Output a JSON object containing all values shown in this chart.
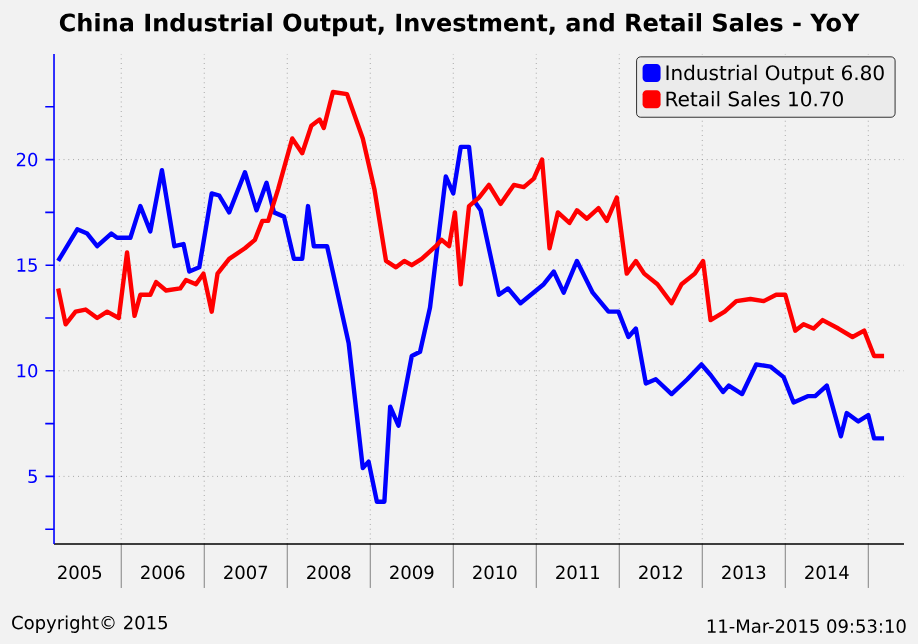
{
  "chart_data": {
    "type": "line",
    "title": "China Industrial Output, Investment, and Retail Sales - YoY",
    "xlim": [
      2005.19,
      2015.43
    ],
    "ylim": [
      1.8,
      25
    ],
    "xticks": [
      {
        "value": 2006,
        "label": null
      },
      {
        "value": 2007,
        "label": null
      },
      {
        "value": 2008,
        "label": null
      },
      {
        "value": 2009,
        "label": null
      },
      {
        "value": 2010,
        "label": null
      },
      {
        "value": 2011,
        "label": null
      },
      {
        "value": 2012,
        "label": null
      },
      {
        "value": 2013,
        "label": null
      },
      {
        "value": 2014,
        "label": null
      },
      {
        "value": 2015,
        "label": null
      },
      {
        "value": 2005.5,
        "label": "2005"
      },
      {
        "value": 2006.5,
        "label": "2006"
      },
      {
        "value": 2007.5,
        "label": "2007"
      },
      {
        "value": 2008.5,
        "label": "2008"
      },
      {
        "value": 2009.5,
        "label": "2009"
      },
      {
        "value": 2010.5,
        "label": "2010"
      },
      {
        "value": 2011.5,
        "label": "2011"
      },
      {
        "value": 2012.5,
        "label": "2012"
      },
      {
        "value": 2013.5,
        "label": "2013"
      },
      {
        "value": 2014.5,
        "label": "2014"
      }
    ],
    "yticks": [
      5,
      10,
      15,
      20,
      {
        "value": 2.5,
        "label": null
      },
      {
        "value": 7.5,
        "label": null
      },
      {
        "value": 12.5,
        "label": null
      },
      {
        "value": 17.5,
        "label": null
      },
      {
        "value": 22.5,
        "label": null
      }
    ],
    "grid": true,
    "legend": "top right",
    "marker": "none",
    "line_style": "solid",
    "series": [
      {
        "name": "Industrial Output 6.80",
        "color": "#0000ff",
        "x": [
          2005.24,
          2005.47,
          2005.59,
          2005.71,
          2005.88,
          2005.95,
          2006.11,
          2006.23,
          2006.35,
          2006.49,
          2006.64,
          2006.75,
          2006.82,
          2006.94,
          2007.09,
          2007.18,
          2007.3,
          2007.49,
          2007.63,
          2007.75,
          2007.84,
          2007.96,
          2008.08,
          2008.18,
          2008.25,
          2008.32,
          2008.48,
          2008.74,
          2008.91,
          2008.98,
          2009.08,
          2009.17,
          2009.24,
          2009.34,
          2009.5,
          2009.6,
          2009.72,
          2009.91,
          2010.0,
          2010.09,
          2010.19,
          2010.26,
          2010.33,
          2010.55,
          2010.66,
          2010.81,
          2011.09,
          2011.21,
          2011.33,
          2011.49,
          2011.68,
          2011.87,
          2011.99,
          2012.11,
          2012.2,
          2012.32,
          2012.44,
          2012.63,
          2012.82,
          2012.99,
          2013.1,
          2013.25,
          2013.32,
          2013.48,
          2013.65,
          2013.82,
          2013.98,
          2014.1,
          2014.27,
          2014.36,
          2014.5,
          2014.67,
          2014.74,
          2014.88,
          2015.0,
          2015.07,
          2015.19
        ],
        "values": [
          15.2,
          16.7,
          16.5,
          15.9,
          16.5,
          16.3,
          16.3,
          17.8,
          16.6,
          19.5,
          15.9,
          16.0,
          14.7,
          14.9,
          18.4,
          18.3,
          17.5,
          19.4,
          17.6,
          18.9,
          17.5,
          17.3,
          15.3,
          15.3,
          17.8,
          15.9,
          15.9,
          11.3,
          5.4,
          5.7,
          3.8,
          3.8,
          8.3,
          7.4,
          10.7,
          10.9,
          13.0,
          19.2,
          18.4,
          20.6,
          20.6,
          18.0,
          17.6,
          13.6,
          13.9,
          13.2,
          14.1,
          14.7,
          13.7,
          15.2,
          13.7,
          12.8,
          12.8,
          11.6,
          12.0,
          9.4,
          9.6,
          8.9,
          9.6,
          10.3,
          9.8,
          9.0,
          9.3,
          8.9,
          10.3,
          10.2,
          9.7,
          8.5,
          8.8,
          8.8,
          9.3,
          6.9,
          8.0,
          7.6,
          7.9,
          6.8,
          6.8
        ]
      },
      {
        "name": "Retail Sales 10.70",
        "color": "#ff0000",
        "x": [
          2005.24,
          2005.33,
          2005.45,
          2005.57,
          2005.71,
          2005.83,
          2005.97,
          2006.07,
          2006.16,
          2006.23,
          2006.35,
          2006.42,
          2006.54,
          2006.71,
          2006.78,
          2006.9,
          2006.99,
          2007.09,
          2007.16,
          2007.3,
          2007.49,
          2007.61,
          2007.7,
          2007.77,
          2007.89,
          2008.06,
          2008.18,
          2008.29,
          2008.39,
          2008.44,
          2008.55,
          2008.72,
          2008.91,
          2009.05,
          2009.19,
          2009.31,
          2009.41,
          2009.5,
          2009.62,
          2009.79,
          2009.86,
          2009.95,
          2010.02,
          2010.09,
          2010.19,
          2010.31,
          2010.43,
          2010.57,
          2010.73,
          2010.85,
          2010.97,
          2011.07,
          2011.16,
          2011.26,
          2011.4,
          2011.49,
          2011.61,
          2011.75,
          2011.85,
          2011.97,
          2012.09,
          2012.2,
          2012.3,
          2012.46,
          2012.63,
          2012.75,
          2012.91,
          2013.01,
          2013.1,
          2013.27,
          2013.41,
          2013.58,
          2013.74,
          2013.89,
          2014.0,
          2014.12,
          2014.22,
          2014.34,
          2014.45,
          2014.64,
          2014.81,
          2014.95,
          2015.07,
          2015.19
        ],
        "values": [
          13.9,
          12.2,
          12.8,
          12.9,
          12.5,
          12.8,
          12.5,
          15.6,
          12.6,
          13.6,
          13.6,
          14.2,
          13.8,
          13.9,
          14.3,
          14.1,
          14.6,
          12.8,
          14.6,
          15.3,
          15.8,
          16.2,
          17.1,
          17.1,
          18.6,
          21.0,
          20.3,
          21.6,
          21.9,
          21.5,
          23.2,
          23.1,
          21.0,
          18.6,
          15.2,
          14.9,
          15.2,
          15.0,
          15.3,
          15.9,
          16.2,
          15.9,
          17.5,
          14.1,
          17.8,
          18.2,
          18.8,
          17.9,
          18.8,
          18.7,
          19.1,
          20.0,
          15.8,
          17.5,
          17.0,
          17.6,
          17.2,
          17.7,
          17.1,
          18.2,
          14.6,
          15.2,
          14.6,
          14.1,
          13.2,
          14.1,
          14.6,
          15.2,
          12.4,
          12.8,
          13.3,
          13.4,
          13.3,
          13.6,
          13.6,
          11.9,
          12.2,
          12.0,
          12.4,
          12.0,
          11.6,
          11.9,
          10.7,
          10.7
        ]
      }
    ],
    "annotations": [
      "Copyright© 2015",
      "11-Mar-2015 09:53:10"
    ]
  }
}
